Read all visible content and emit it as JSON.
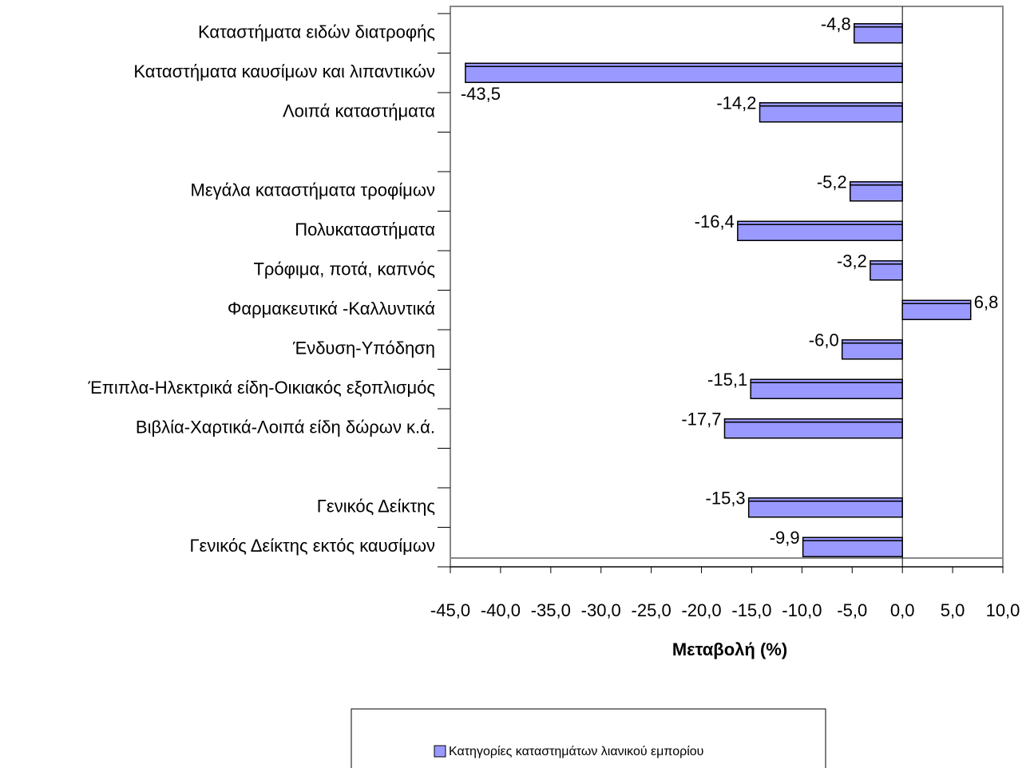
{
  "chart_data": {
    "type": "barh",
    "categories": [
      "Καταστήματα ειδών διατροφής",
      "Καταστήματα  καυσίμων και λιπαντικών",
      "Λοιπά καταστήματα",
      null,
      "Μεγάλα καταστήματα τροφίμων",
      "Πολυκαταστήματα",
      "Τρόφιμα, ποτά, καπνός",
      "Φαρμακευτικά -Καλλυντικά",
      "Ένδυση-Υπόδηση",
      "Έπιπλα-Ηλεκτρικά είδη-Οικιακός εξοπλισμός",
      "Βιβλία-Χαρτικά-Λοιπά είδη δώρων κ.ά.",
      null,
      "Γενικός Δείκτης",
      "Γενικός Δείκτης εκτός καυσίμων"
    ],
    "series": [
      {
        "name": "Κατηγορίες καταστημάτων λιανικού εμπορίου",
        "color": "#9999ff",
        "values": [
          -4.8,
          -43.5,
          -14.2,
          null,
          -5.2,
          -16.4,
          -3.2,
          6.8,
          -6.0,
          -15.1,
          -17.7,
          null,
          -15.3,
          -9.9
        ],
        "value_labels": [
          "-4,8",
          "-43,5",
          "-14,2",
          null,
          "-5,2",
          "-16,4",
          "-3,2",
          "6,8",
          "-6,0",
          "-15,1",
          "-17,7",
          null,
          "-15,3",
          "-9,9"
        ]
      }
    ],
    "xlabel": "Μεταβολή (%)",
    "xlim": [
      -45,
      10
    ],
    "xticks": [
      {
        "value": -45,
        "label": "-45,0"
      },
      {
        "value": -40,
        "label": "-40,0"
      },
      {
        "value": -35,
        "label": "-35,0"
      },
      {
        "value": -30,
        "label": "-30,0"
      },
      {
        "value": -25,
        "label": "-25,0"
      },
      {
        "value": -20,
        "label": "-20,0"
      },
      {
        "value": -15,
        "label": "-15,0"
      },
      {
        "value": -10,
        "label": "-10,0"
      },
      {
        "value": -5,
        "label": "-5,0"
      },
      {
        "value": 0,
        "label": "0,0"
      },
      {
        "value": 5,
        "label": "5,0"
      },
      {
        "value": 10,
        "label": "10,0"
      }
    ],
    "legend": "bottom"
  }
}
